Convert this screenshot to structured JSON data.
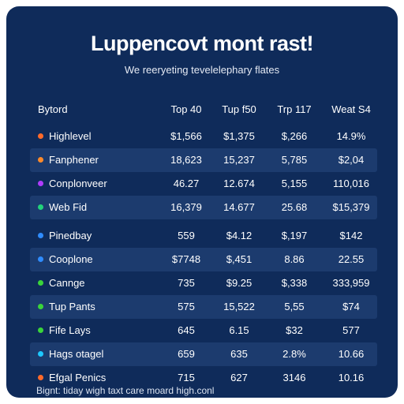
{
  "title": "Luppencovt mont rast!",
  "subtitle": "We reeryeting tevelelephary flates",
  "footer": "Bignt: tiday wigh taxt care moard high.conl",
  "colors": {
    "background": "#0f2b5a",
    "row_alt": "#1c3b6e"
  },
  "chart_data": {
    "type": "table",
    "columns": [
      "Bytord",
      "Top 40",
      "Tup f50",
      "Trp 117",
      "Weat S4"
    ],
    "rows": [
      {
        "name": "Highlevel",
        "dot_color": "#ff6a2a",
        "values": [
          "$1,566",
          "$1,375",
          "$,266",
          "14.9%"
        ]
      },
      {
        "name": "Fanphener",
        "dot_color": "#ff8a2a",
        "values": [
          "18,623",
          "15,237",
          "5,785",
          "$2,04"
        ]
      },
      {
        "name": "Conplonveer",
        "dot_color": "#b03cff",
        "values": [
          "46.27",
          "12.674",
          "5,155",
          "110,016"
        ]
      },
      {
        "name": "Web Fid",
        "dot_color": "#22d27a",
        "values": [
          "16,379",
          "14.677",
          "25.68",
          "$15,379"
        ]
      },
      {
        "name": "Pinedbay",
        "dot_color": "#2f8cff",
        "values": [
          "559",
          "$4.12",
          "$,197",
          "$142"
        ]
      },
      {
        "name": "Cooplone",
        "dot_color": "#2f8cff",
        "values": [
          "$7748",
          "$,451",
          "8.86",
          "22.55"
        ]
      },
      {
        "name": "Cannge",
        "dot_color": "#3ad43a",
        "values": [
          "735",
          "$9.25",
          "$,338",
          "333,959"
        ]
      },
      {
        "name": "Tup Pants",
        "dot_color": "#3ad43a",
        "values": [
          "575",
          "15,522",
          "5,55",
          "$74"
        ]
      },
      {
        "name": "Fife Lays",
        "dot_color": "#3ad43a",
        "values": [
          "645",
          "6.15",
          "$32",
          "577"
        ]
      },
      {
        "name": "Hags otagel",
        "dot_color": "#1ec8ff",
        "values": [
          "659",
          "635",
          "2.8%",
          "10.66"
        ]
      },
      {
        "name": "Efgal Penics",
        "dot_color": "#ff6a2a",
        "values": [
          "715",
          "627",
          "3146",
          "10.16"
        ]
      }
    ]
  }
}
